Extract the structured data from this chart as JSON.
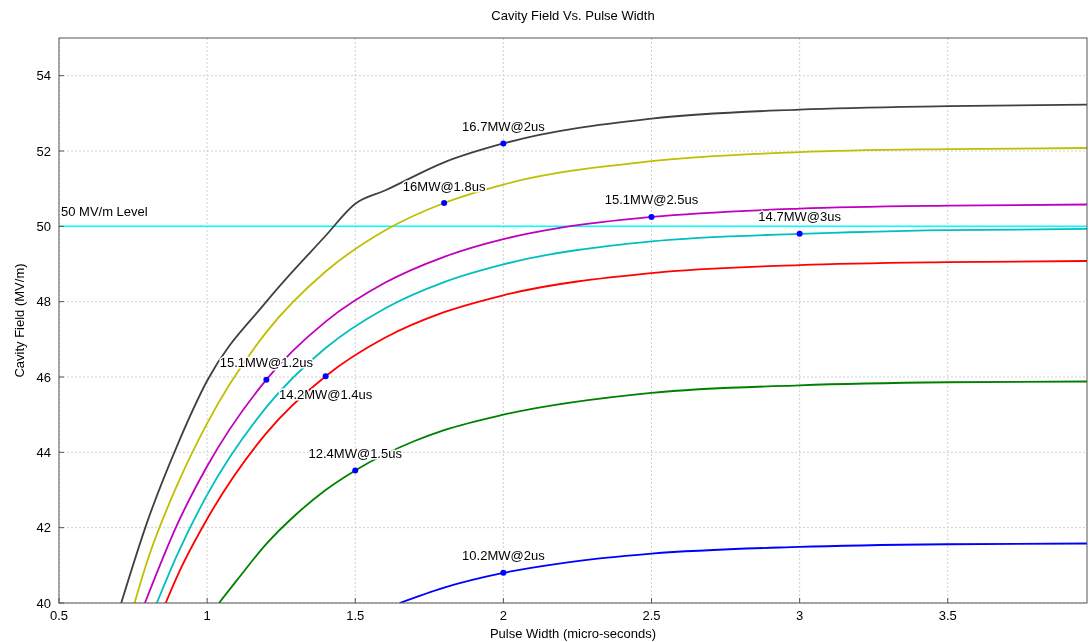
{
  "chart_data": {
    "type": "line",
    "title": "Cavity Field Vs. Pulse Width",
    "xlabel": "Pulse Width (micro-seconds)",
    "ylabel": "Cavity Field (MV/m)",
    "xlim": [
      0.5,
      3.97
    ],
    "xticks": [
      0.5,
      1,
      1.5,
      2,
      2.5,
      3,
      3.5
    ],
    "ylim": [
      40,
      55
    ],
    "yticks": [
      40,
      42,
      44,
      46,
      48,
      50,
      52,
      54
    ],
    "grid": true,
    "line_style": "solid",
    "marker": "none",
    "series": [
      {
        "color": "#404040",
        "x": [
          0.71,
          0.8,
          0.9,
          1.0,
          1.2,
          1.4,
          1.5,
          1.6,
          1.8,
          2.0,
          2.5,
          3.0,
          3.5,
          3.97
        ],
        "values": [
          40.0,
          42.2,
          44.2,
          45.9,
          48.0,
          49.75,
          50.6,
          50.95,
          51.7,
          52.2,
          52.86,
          53.1,
          53.19,
          53.23
        ]
      },
      {
        "color": "#bfbf00",
        "x": [
          0.755,
          0.8,
          0.9,
          1.0,
          1.2,
          1.4,
          1.6,
          1.8,
          2.0,
          2.5,
          3.0,
          3.5,
          3.97
        ],
        "values": [
          40.0,
          41.16,
          43.15,
          44.77,
          47.19,
          48.8,
          49.89,
          50.62,
          51.11,
          51.73,
          51.97,
          52.05,
          52.08
        ]
      },
      {
        "color": "#bf00bf",
        "x": [
          0.79,
          0.9,
          1.0,
          1.2,
          1.4,
          1.6,
          1.8,
          2.0,
          2.2,
          2.5,
          3.0,
          3.5,
          3.97
        ],
        "values": [
          40.0,
          42.1,
          43.63,
          45.93,
          47.47,
          48.5,
          49.19,
          49.66,
          49.97,
          50.25,
          50.47,
          50.55,
          50.58
        ]
      },
      {
        "color": "#00bfbf",
        "x": [
          0.83,
          0.9,
          1.0,
          1.2,
          1.4,
          1.6,
          1.8,
          2.0,
          2.5,
          3.0,
          3.5,
          3.97
        ],
        "values": [
          40.0,
          41.3,
          42.87,
          45.2,
          46.77,
          47.82,
          48.52,
          48.99,
          49.6,
          49.8,
          49.9,
          49.93
        ]
      },
      {
        "color": "#ff0000",
        "x": [
          0.86,
          0.9,
          1.0,
          1.2,
          1.4,
          1.6,
          1.8,
          2.0,
          2.5,
          3.0,
          3.5,
          3.97
        ],
        "values": [
          40.0,
          40.73,
          42.23,
          44.51,
          46.02,
          47.04,
          47.72,
          48.17,
          48.76,
          48.97,
          49.05,
          49.08
        ]
      },
      {
        "color": "#008000",
        "x": [
          1.04,
          1.1,
          1.2,
          1.3,
          1.4,
          1.5,
          1.7,
          1.8,
          2.0,
          2.5,
          3.0,
          3.5,
          3.97
        ],
        "values": [
          40.0,
          40.6,
          41.57,
          42.35,
          43.0,
          43.52,
          44.3,
          44.59,
          45.0,
          45.58,
          45.78,
          45.86,
          45.88
        ]
      },
      {
        "color": "#0000ff",
        "x": [
          1.65,
          1.8,
          2.0,
          2.2,
          2.5,
          3.0,
          3.5,
          3.97
        ],
        "values": [
          40.0,
          40.41,
          40.8,
          41.06,
          41.31,
          41.49,
          41.56,
          41.58
        ]
      },
      {
        "type": "scatter",
        "marker": "circle",
        "color": "#0000ff",
        "x": [
          2.0,
          1.8,
          2.5,
          3.0,
          1.2,
          1.4,
          1.5,
          2.0
        ],
        "values": [
          52.2,
          50.62,
          50.25,
          49.8,
          45.93,
          46.02,
          43.52,
          40.8
        ]
      }
    ],
    "ref_lines": [
      {
        "axis": "y",
        "value": 50,
        "label": "50 MV/m Level",
        "color": "#00ffff"
      }
    ],
    "annotations": [
      {
        "text": "16.7MW@2us",
        "x": 2.0,
        "y": 52.2
      },
      {
        "text": "16MW@1.8us",
        "x": 1.8,
        "y": 50.62
      },
      {
        "text": "15.1MW@2.5us",
        "x": 2.5,
        "y": 50.25
      },
      {
        "text": "14.7MW@3us",
        "x": 3.0,
        "y": 49.8
      },
      {
        "text": "15.1MW@1.2us",
        "x": 1.2,
        "y": 45.93
      },
      {
        "text": "14.2MW@1.4us",
        "x": 1.4,
        "y": 46.02
      },
      {
        "text": "12.4MW@1.5us",
        "x": 1.5,
        "y": 43.52
      },
      {
        "text": "10.2MW@2us",
        "x": 2.0,
        "y": 40.8
      }
    ]
  }
}
